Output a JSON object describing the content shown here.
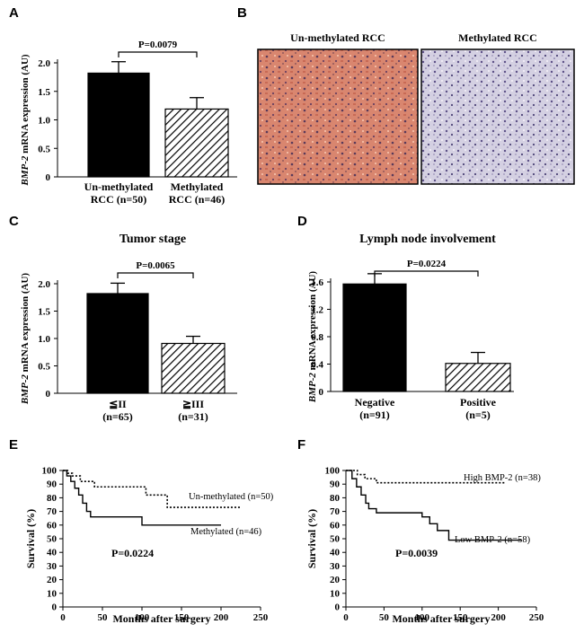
{
  "panel_letters": {
    "A": "A",
    "B": "B",
    "C": "C",
    "D": "D",
    "E": "E",
    "F": "F"
  },
  "images": {
    "left_label": "Un-methylated RCC",
    "right_label": "Methylated RCC",
    "left_color": "#d9866f",
    "right_color": "#c7c3d8"
  },
  "colors": {
    "bar_solid": "#000000",
    "bar_hatch": "#000000",
    "background": "#ffffff"
  },
  "chart_data": [
    {
      "id": "A",
      "type": "bar",
      "title": "",
      "ylabel_gene": "BMP-2",
      "ylabel_rest": " mRNA expression (AU)",
      "categories": [
        {
          "line1": "Un-methylated",
          "line2": "RCC (n=50)"
        },
        {
          "line1": "Methylated",
          "line2": "RCC (n=46)"
        }
      ],
      "values": [
        1.82,
        1.19
      ],
      "errors": [
        0.2,
        0.2
      ],
      "fills": [
        "solid",
        "hatch"
      ],
      "ylim": [
        0,
        2.0
      ],
      "yticks": [
        "0",
        "0.5",
        "1.0",
        "1.5",
        "2.0"
      ],
      "ytick_values": [
        0,
        0.5,
        1.0,
        1.5,
        2.0
      ],
      "pvalue": "P=0.0079"
    },
    {
      "id": "C",
      "type": "bar",
      "title": "Tumor stage",
      "ylabel_gene": "BMP-2",
      "ylabel_rest": " mRNA expression (AU)",
      "categories": [
        {
          "line1": "≦II",
          "line2": "(n=65)"
        },
        {
          "line1": "≧III",
          "line2": "(n=31)"
        }
      ],
      "values": [
        1.82,
        0.91
      ],
      "errors": [
        0.19,
        0.13
      ],
      "fills": [
        "solid",
        "hatch"
      ],
      "ylim": [
        0,
        2.0
      ],
      "yticks": [
        "0",
        "0.5",
        "1.0",
        "1.5",
        "2.0"
      ],
      "ytick_values": [
        0,
        0.5,
        1.0,
        1.5,
        2.0
      ],
      "pvalue": "P=0.0065"
    },
    {
      "id": "D",
      "type": "bar",
      "title": "Lymph node involvement",
      "ylabel_gene": "BMP-2",
      "ylabel_rest": " mRNA expression (AU)",
      "categories": [
        {
          "line1": "Negative",
          "line2": "(n=91)"
        },
        {
          "line1": "Positive",
          "line2": "(n=5)"
        }
      ],
      "values": [
        1.57,
        0.41
      ],
      "errors": [
        0.15,
        0.16
      ],
      "fills": [
        "solid",
        "hatch"
      ],
      "ylim": [
        0,
        1.6
      ],
      "yticks": [
        "0",
        "0.4",
        "0.8",
        "1.2",
        "1.6"
      ],
      "ytick_values": [
        0,
        0.4,
        0.8,
        1.2,
        1.6
      ],
      "pvalue": "P=0.0224"
    },
    {
      "id": "E",
      "type": "line",
      "title": "",
      "xlabel": "Months after surgery",
      "ylabel": "Survival (%)",
      "xlim": [
        0,
        250
      ],
      "ylim": [
        0,
        100
      ],
      "xticks": [
        "0",
        "50",
        "100",
        "150",
        "200",
        "250"
      ],
      "xtick_values": [
        0,
        50,
        100,
        150,
        200,
        250
      ],
      "yticks": [
        "0",
        "10",
        "20",
        "30",
        "40",
        "50",
        "60",
        "70",
        "80",
        "90",
        "100"
      ],
      "ytick_values": [
        0,
        10,
        20,
        30,
        40,
        50,
        60,
        70,
        80,
        90,
        100
      ],
      "series": [
        {
          "name": "Un-methylated (n=50)",
          "style": "dotted",
          "x": [
            0,
            6,
            12,
            22,
            40,
            105,
            132,
            225
          ],
          "y": [
            100,
            98,
            96,
            92,
            88,
            82,
            73,
            73
          ]
        },
        {
          "name": "Methylated (n=46)",
          "style": "solid",
          "x": [
            0,
            5,
            10,
            15,
            20,
            25,
            30,
            35,
            100,
            200
          ],
          "y": [
            100,
            96,
            92,
            87,
            82,
            76,
            70,
            66,
            60,
            60
          ]
        }
      ],
      "pvalue": "P=0.0224"
    },
    {
      "id": "F",
      "type": "line",
      "title": "",
      "xlabel": "Months after surgery",
      "ylabel": "Survival (%)",
      "xlim": [
        0,
        250
      ],
      "ylim": [
        0,
        100
      ],
      "xticks": [
        "0",
        "50",
        "100",
        "150",
        "200",
        "250"
      ],
      "xtick_values": [
        0,
        50,
        100,
        150,
        200,
        250
      ],
      "yticks": [
        "0",
        "10",
        "20",
        "30",
        "40",
        "50",
        "60",
        "70",
        "80",
        "90",
        "100"
      ],
      "ytick_values": [
        0,
        10,
        20,
        30,
        40,
        50,
        60,
        70,
        80,
        90,
        100
      ],
      "series": [
        {
          "name": "High BMP-2 (n=38)",
          "style": "dotted",
          "x": [
            0,
            15,
            25,
            40,
            210
          ],
          "y": [
            100,
            97,
            94,
            91,
            91
          ]
        },
        {
          "name": "Low BMP-2 (n=58)",
          "style": "solid",
          "x": [
            0,
            8,
            14,
            20,
            26,
            30,
            40,
            100,
            110,
            120,
            135,
            230
          ],
          "y": [
            100,
            94,
            88,
            82,
            76,
            72,
            69,
            66,
            61,
            56,
            49,
            49
          ]
        }
      ],
      "pvalue": "P=0.0039"
    }
  ]
}
